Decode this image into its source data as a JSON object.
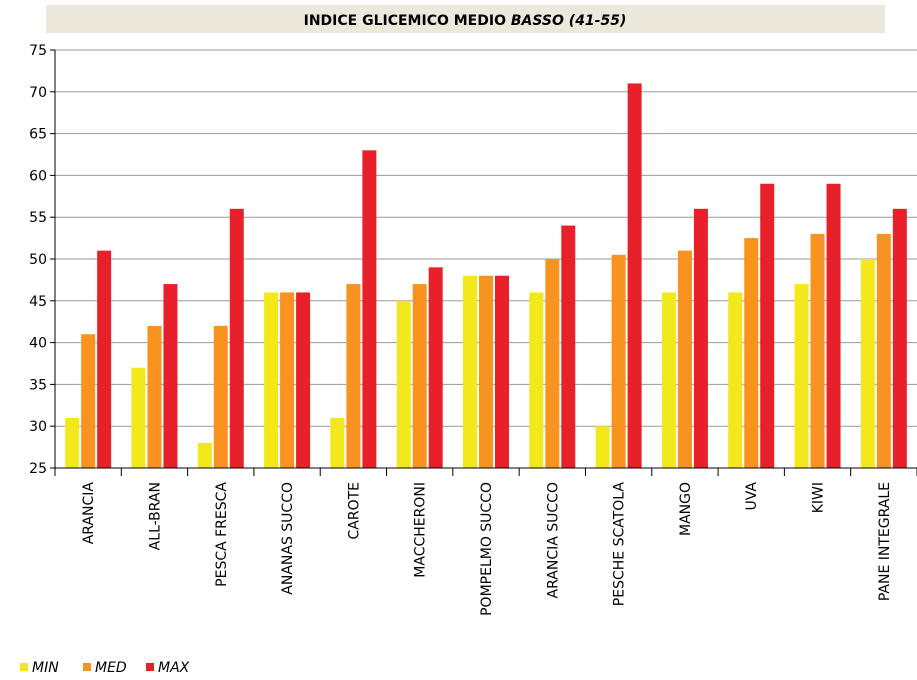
{
  "chart_data": {
    "type": "bar",
    "title": [
      "INDICE GLICEMICO MEDIO ",
      "BASSO (41-55)"
    ],
    "categories": [
      "ARANCIA",
      "ALL-BRAN",
      "PESCA FRESCA",
      "ANANAS SUCCO",
      "CAROTE",
      "MACCHERONI",
      "POMPELMO SUCCO",
      "ARANCIA SUCCO",
      "PESCHE SCATOLA",
      "MANGO",
      "UVA",
      "KIWI",
      "PANE INTEGRALE"
    ],
    "series": [
      {
        "name": "MIN",
        "color": "#f2e81c",
        "values": [
          31,
          37,
          28,
          46,
          31,
          45,
          48,
          46,
          30,
          46,
          46,
          47,
          50
        ]
      },
      {
        "name": "MED",
        "color": "#f7931e",
        "values": [
          41,
          42,
          42,
          46,
          47,
          47,
          48,
          50,
          50.5,
          51,
          52.5,
          53,
          53
        ]
      },
      {
        "name": "MAX",
        "color": "#e8202a",
        "values": [
          51,
          47,
          56,
          46,
          63,
          49,
          48,
          54,
          71,
          56,
          59,
          59,
          56
        ]
      }
    ],
    "ylim": [
      25,
      75
    ],
    "yticks": [
      25,
      30,
      35,
      40,
      45,
      50,
      55,
      60,
      65,
      70,
      75
    ],
    "grid": true,
    "legend": "bottom-left"
  }
}
